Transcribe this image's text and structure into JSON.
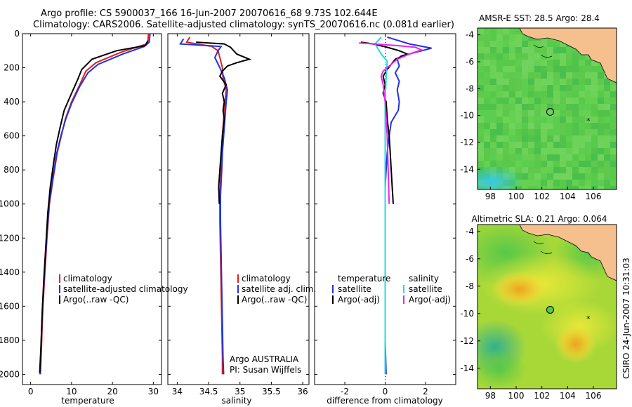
{
  "header": {
    "line1": "Argo profile: CS 5900037_166 16-Jun-2007 20070616_68 9.73S 102.644E",
    "line2": "Climatology: CARS2006. Satellite-adjusted climatology: synTS_20070616.nc (0.081d earlier)"
  },
  "colors": {
    "climatology": "#dd2222",
    "satellite": "#2233dd",
    "argo": "#000000",
    "sat_salinity": "#22dddd",
    "argo_salinity": "#ee22ee",
    "land": "#f5c08e"
  },
  "stamp": "CSIRO 24-Jun-2007 10:31:03",
  "footer_note": {
    "line1": "Argo AUSTRALIA",
    "line2": "PI: Susan Wijffels"
  },
  "chart_data": [
    {
      "type": "line",
      "id": "temperature",
      "xlabel": "temperature",
      "ylabel": "",
      "xlim": [
        -2,
        32
      ],
      "ylim": [
        2060,
        0
      ],
      "xticks": [
        0,
        10,
        20,
        30
      ],
      "yticks": [
        0,
        200,
        400,
        600,
        800,
        1000,
        1200,
        1400,
        1600,
        1800,
        2000
      ],
      "legend": [
        "climatology",
        "satellite-adjusted climatology",
        "Argo(..raw -QC)"
      ],
      "series": [
        {
          "name": "climatology",
          "color": "#dd2222",
          "points": [
            [
              28.8,
              0
            ],
            [
              28.7,
              40
            ],
            [
              28.4,
              60
            ],
            [
              22,
              110
            ],
            [
              16,
              170
            ],
            [
              13.5,
              220
            ],
            [
              12,
              300
            ],
            [
              10,
              400
            ],
            [
              8.5,
              500
            ],
            [
              7.5,
              600
            ],
            [
              6.5,
              700
            ],
            [
              5.5,
              850
            ],
            [
              4.6,
              1000
            ],
            [
              4,
              1200
            ],
            [
              3.5,
              1400
            ],
            [
              3,
              1600
            ],
            [
              2.7,
              1800
            ],
            [
              2.4,
              2000
            ]
          ]
        },
        {
          "name": "satellite-adjusted climatology",
          "color": "#2233dd",
          "points": [
            [
              29.2,
              0
            ],
            [
              29,
              50
            ],
            [
              27.8,
              75
            ],
            [
              22.5,
              120
            ],
            [
              16.5,
              180
            ],
            [
              14,
              230
            ],
            [
              12,
              310
            ],
            [
              10,
              410
            ],
            [
              8.6,
              500
            ],
            [
              7.4,
              600
            ],
            [
              6.4,
              700
            ],
            [
              5.4,
              850
            ],
            [
              4.5,
              1000
            ],
            [
              3.9,
              1200
            ],
            [
              3.4,
              1400
            ],
            [
              2.9,
              1600
            ],
            [
              2.6,
              1800
            ],
            [
              2.3,
              2000
            ]
          ]
        },
        {
          "name": "Argo(..raw -QC)",
          "color": "#000000",
          "points": [
            [
              28.7,
              40
            ],
            [
              28,
              70
            ],
            [
              21,
              100
            ],
            [
              15,
              150
            ],
            [
              12.5,
              210
            ],
            [
              11.5,
              270
            ],
            [
              10,
              350
            ],
            [
              8.2,
              450
            ],
            [
              7.2,
              550
            ],
            [
              6.3,
              650
            ],
            [
              5.6,
              760
            ],
            [
              4.8,
              900
            ],
            [
              4.2,
              1050
            ],
            [
              3.7,
              1250
            ],
            [
              3.2,
              1450
            ],
            [
              2.8,
              1650
            ],
            [
              2.5,
              1850
            ],
            [
              2.2,
              1990
            ]
          ]
        }
      ]
    },
    {
      "type": "line",
      "id": "salinity",
      "xlabel": "salinity",
      "xlim": [
        33.85,
        36.1
      ],
      "ylim": [
        2060,
        0
      ],
      "xticks": [
        34,
        34.5,
        35,
        35.5,
        36
      ],
      "legend": [
        "climatology",
        "satellite adj. clim.",
        "Argo(..raw -QC)"
      ],
      "series": [
        {
          "name": "climatology",
          "color": "#dd2222",
          "points": [
            [
              34.2,
              20
            ],
            [
              34.15,
              50
            ],
            [
              34.55,
              75
            ],
            [
              34.65,
              100
            ],
            [
              34.68,
              140
            ],
            [
              34.72,
              200
            ],
            [
              34.73,
              260
            ],
            [
              34.78,
              330
            ],
            [
              34.76,
              400
            ],
            [
              34.74,
              500
            ],
            [
              34.72,
              600
            ],
            [
              34.71,
              700
            ],
            [
              34.7,
              800
            ],
            [
              34.68,
              950
            ],
            [
              34.68,
              1100
            ],
            [
              34.69,
              1300
            ],
            [
              34.7,
              1500
            ],
            [
              34.71,
              1700
            ],
            [
              34.72,
              1900
            ],
            [
              34.72,
              2000
            ]
          ]
        },
        {
          "name": "satellite adj. clim.",
          "color": "#2233dd",
          "points": [
            [
              34.1,
              30
            ],
            [
              34.05,
              60
            ],
            [
              34.7,
              75
            ],
            [
              34.65,
              100
            ],
            [
              34.6,
              140
            ],
            [
              34.68,
              200
            ],
            [
              34.75,
              260
            ],
            [
              34.8,
              330
            ],
            [
              34.78,
              400
            ],
            [
              34.76,
              500
            ],
            [
              34.74,
              600
            ],
            [
              34.72,
              700
            ],
            [
              34.71,
              800
            ],
            [
              34.69,
              950
            ],
            [
              34.69,
              1100
            ],
            [
              34.7,
              1300
            ],
            [
              34.71,
              1500
            ],
            [
              34.72,
              1700
            ],
            [
              34.73,
              1900
            ],
            [
              34.74,
              2000
            ]
          ]
        },
        {
          "name": "Argo(..raw -QC)",
          "color": "#000000",
          "points": [
            [
              34.3,
              50
            ],
            [
              34.75,
              60
            ],
            [
              34.85,
              80
            ],
            [
              34.9,
              100
            ],
            [
              34.95,
              120
            ],
            [
              35.15,
              150
            ],
            [
              34.95,
              170
            ],
            [
              34.8,
              190
            ],
            [
              34.72,
              220
            ],
            [
              34.68,
              250
            ],
            [
              34.78,
              300
            ],
            [
              34.72,
              350
            ],
            [
              34.75,
              400
            ],
            [
              34.73,
              450
            ],
            [
              34.75,
              500
            ],
            [
              34.72,
              600
            ],
            [
              34.7,
              700
            ],
            [
              34.68,
              800
            ],
            [
              34.66,
              900
            ],
            [
              34.67,
              1000
            ]
          ]
        }
      ]
    },
    {
      "type": "line",
      "id": "difference",
      "xlabel": "difference from climatology",
      "xlim": [
        -3.5,
        3.5
      ],
      "ylim": [
        2060,
        0
      ],
      "xticks": [
        -2,
        0,
        2
      ],
      "legend": [
        "temperature",
        "satellite",
        "Argo(-adj)",
        "salinity",
        "satellite",
        "Argo(-adj)"
      ],
      "series": [
        {
          "name": "temperature satellite",
          "color": "#2233dd",
          "points": [
            [
              0.1,
              20
            ],
            [
              1.2,
              60
            ],
            [
              2.3,
              85
            ],
            [
              1.5,
              110
            ],
            [
              0.8,
              130
            ],
            [
              0.6,
              150
            ],
            [
              0.7,
              190
            ],
            [
              0.5,
              230
            ],
            [
              0.7,
              280
            ],
            [
              0.6,
              330
            ],
            [
              0.7,
              400
            ],
            [
              0.65,
              450
            ],
            [
              0.3,
              520
            ],
            [
              0.2,
              600
            ],
            [
              0.1,
              700
            ],
            [
              0.05,
              800
            ],
            [
              0,
              900
            ],
            [
              0,
              1000
            ],
            [
              0,
              1400
            ],
            [
              0,
              1800
            ],
            [
              0.05,
              2000
            ]
          ]
        },
        {
          "name": "temperature Argo(-adj)",
          "color": "#000000",
          "points": [
            [
              -1.2,
              50
            ],
            [
              -0.6,
              60
            ],
            [
              0.1,
              80
            ],
            [
              0.7,
              100
            ],
            [
              1.1,
              120
            ],
            [
              0.5,
              150
            ],
            [
              0.3,
              180
            ],
            [
              0.1,
              210
            ],
            [
              -0.1,
              250
            ],
            [
              0,
              300
            ],
            [
              -0.1,
              350
            ],
            [
              0.05,
              400
            ],
            [
              0.1,
              500
            ],
            [
              0.2,
              600
            ],
            [
              0.25,
              700
            ],
            [
              0.3,
              800
            ],
            [
              0.35,
              900
            ],
            [
              0.4,
              1000
            ]
          ]
        },
        {
          "name": "salinity satellite",
          "color": "#22dddd",
          "points": [
            [
              -0.2,
              20
            ],
            [
              -0.5,
              60
            ],
            [
              -0.4,
              80
            ],
            [
              -0.2,
              120
            ],
            [
              0.1,
              160
            ],
            [
              0.05,
              250
            ],
            [
              0,
              400
            ],
            [
              0,
              600
            ],
            [
              0,
              800
            ],
            [
              0,
              1000
            ],
            [
              0,
              1300
            ],
            [
              0,
              1600
            ],
            [
              0,
              1900
            ],
            [
              0,
              2000
            ]
          ]
        },
        {
          "name": "salinity Argo(-adj)",
          "color": "#ee22ee",
          "points": [
            [
              -1.3,
              55
            ],
            [
              -0.5,
              60
            ],
            [
              0.6,
              70
            ],
            [
              1.5,
              80
            ],
            [
              1.8,
              95
            ],
            [
              1.2,
              120
            ],
            [
              0.6,
              150
            ],
            [
              0.3,
              180
            ],
            [
              -0.1,
              220
            ],
            [
              -0.2,
              250
            ],
            [
              -0.1,
              300
            ],
            [
              0,
              400
            ],
            [
              0.1,
              600
            ],
            [
              0.15,
              800
            ],
            [
              0.2,
              1000
            ]
          ]
        }
      ]
    },
    {
      "type": "heatmap",
      "id": "sst_map",
      "title": "AMSR-E SST: 28.5 Argo: 28.4",
      "xlim": [
        97,
        107.8
      ],
      "ylim": [
        -15.5,
        -3.5
      ],
      "xticks": [
        98,
        100,
        102,
        104,
        106
      ],
      "yticks": [
        -4,
        -6,
        -8,
        -10,
        -12,
        -14
      ],
      "float_position": [
        102.644,
        -9.73
      ]
    },
    {
      "type": "heatmap",
      "id": "sla_map",
      "title": "Altimetric SLA: 0.21 Argo: 0.064",
      "xlim": [
        97,
        107.8
      ],
      "ylim": [
        -15.5,
        -3.5
      ],
      "xticks": [
        98,
        100,
        102,
        104,
        106
      ],
      "yticks": [
        -4,
        -6,
        -8,
        -10,
        -12,
        -14
      ],
      "float_position": [
        102.644,
        -9.73
      ]
    }
  ]
}
